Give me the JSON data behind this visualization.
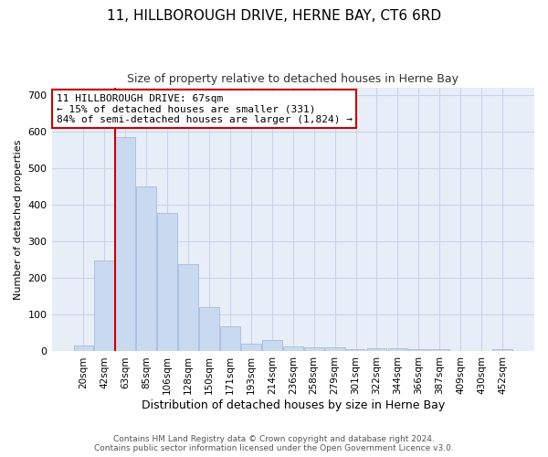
{
  "title": "11, HILLBOROUGH DRIVE, HERNE BAY, CT6 6RD",
  "subtitle": "Size of property relative to detached houses in Herne Bay",
  "xlabel": "Distribution of detached houses by size in Herne Bay",
  "ylabel": "Number of detached properties",
  "bar_labels": [
    "20sqm",
    "42sqm",
    "63sqm",
    "85sqm",
    "106sqm",
    "128sqm",
    "150sqm",
    "171sqm",
    "193sqm",
    "214sqm",
    "236sqm",
    "258sqm",
    "279sqm",
    "301sqm",
    "322sqm",
    "344sqm",
    "366sqm",
    "387sqm",
    "409sqm",
    "430sqm",
    "452sqm"
  ],
  "bar_values": [
    15,
    247,
    585,
    449,
    377,
    237,
    120,
    68,
    22,
    30,
    14,
    11,
    11,
    7,
    8,
    8,
    5,
    5,
    2,
    1,
    5
  ],
  "bar_color": "#c8d9f0",
  "bar_edge_color": "#9ab5d8",
  "vline_color": "#cc0000",
  "vline_index": 2,
  "annotation_text": "11 HILLBOROUGH DRIVE: 67sqm\n← 15% of detached houses are smaller (331)\n84% of semi-detached houses are larger (1,824) →",
  "annotation_box_color": "#ffffff",
  "annotation_box_edge_color": "#cc0000",
  "ylim": [
    0,
    720
  ],
  "yticks": [
    0,
    100,
    200,
    300,
    400,
    500,
    600,
    700
  ],
  "grid_color": "#c8d4e8",
  "bg_color": "#e8eef8",
  "fig_color": "#ffffff",
  "footer_line1": "Contains HM Land Registry data © Crown copyright and database right 2024.",
  "footer_line2": "Contains public sector information licensed under the Open Government Licence v3.0."
}
